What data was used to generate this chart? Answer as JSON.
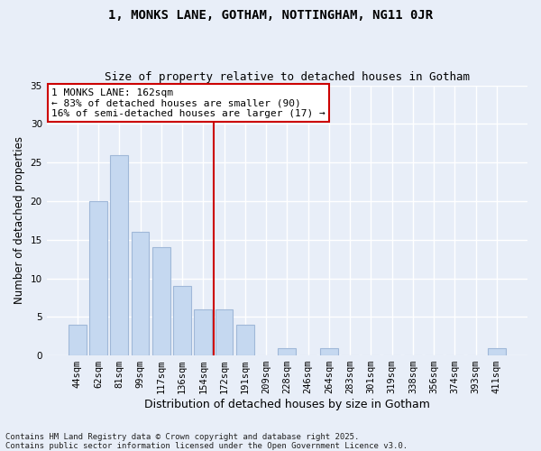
{
  "title": "1, MONKS LANE, GOTHAM, NOTTINGHAM, NG11 0JR",
  "subtitle": "Size of property relative to detached houses in Gotham",
  "xlabel": "Distribution of detached houses by size in Gotham",
  "ylabel": "Number of detached properties",
  "categories": [
    "44sqm",
    "62sqm",
    "81sqm",
    "99sqm",
    "117sqm",
    "136sqm",
    "154sqm",
    "172sqm",
    "191sqm",
    "209sqm",
    "228sqm",
    "246sqm",
    "264sqm",
    "283sqm",
    "301sqm",
    "319sqm",
    "338sqm",
    "356sqm",
    "374sqm",
    "393sqm",
    "411sqm"
  ],
  "values": [
    4,
    20,
    26,
    16,
    14,
    9,
    6,
    6,
    4,
    0,
    1,
    0,
    1,
    0,
    0,
    0,
    0,
    0,
    0,
    0,
    1
  ],
  "bar_color": "#c5d8f0",
  "bar_edge_color": "#a0b8d8",
  "vline_index": 6.5,
  "vline_color": "#cc0000",
  "annotation_text": "1 MONKS LANE: 162sqm\n← 83% of detached houses are smaller (90)\n16% of semi-detached houses are larger (17) →",
  "annotation_box_color": "#ffffff",
  "annotation_box_edge": "#cc0000",
  "background_color": "#e8eef8",
  "grid_color": "#ffffff",
  "ylim": [
    0,
    35
  ],
  "yticks": [
    0,
    5,
    10,
    15,
    20,
    25,
    30,
    35
  ],
  "footer": "Contains HM Land Registry data © Crown copyright and database right 2025.\nContains public sector information licensed under the Open Government Licence v3.0.",
  "title_fontsize": 10,
  "subtitle_fontsize": 9,
  "xlabel_fontsize": 9,
  "ylabel_fontsize": 8.5,
  "tick_fontsize": 7.5,
  "annot_fontsize": 8,
  "footer_fontsize": 6.5
}
